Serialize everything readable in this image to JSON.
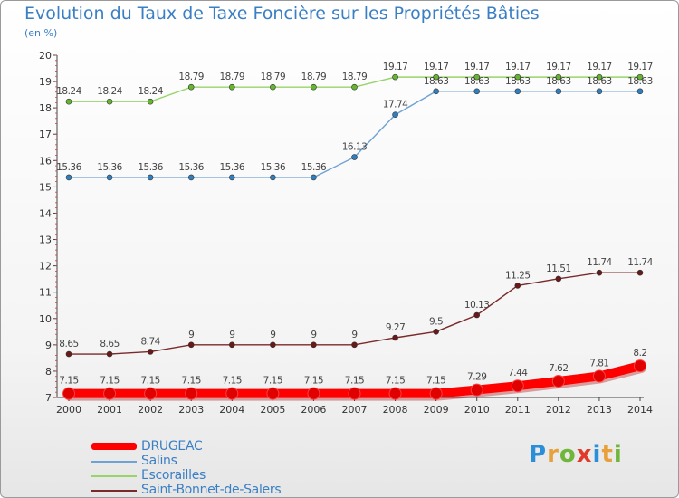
{
  "title": "Evolution du Taux de Taxe Foncière sur les Propriétés Bâties",
  "unit_label": "(en %)",
  "logo": {
    "letters": [
      "P",
      "r",
      "o",
      "x",
      "i",
      "t",
      "i"
    ],
    "colors": [
      "#2a8fd8",
      "#e8a13a",
      "#6fb63a",
      "#e23a2a",
      "#2a8fd8",
      "#e8a13a",
      "#6fb63a"
    ]
  },
  "chart_data": {
    "type": "line",
    "x": [
      2000,
      2001,
      2002,
      2003,
      2004,
      2005,
      2006,
      2007,
      2008,
      2009,
      2010,
      2011,
      2012,
      2013,
      2014
    ],
    "ylim": [
      7,
      20
    ],
    "yticks": [
      7,
      8,
      9,
      10,
      11,
      12,
      13,
      14,
      15,
      16,
      17,
      18,
      19,
      20
    ],
    "grid": false,
    "legend_position": "bottom-left",
    "series": [
      {
        "name": "DRUGEAC",
        "color": "#ff0000",
        "marker_color": "#e00000",
        "labels": [
          "7.15",
          "7.15",
          "7.15",
          "7.15",
          "7.15",
          "7.15",
          "7.15",
          "7.15",
          "7.15",
          "7.15",
          "7.29",
          "7.44",
          "7.62",
          "7.81",
          "8.2"
        ],
        "values": [
          7.15,
          7.15,
          7.15,
          7.15,
          7.15,
          7.15,
          7.15,
          7.15,
          7.15,
          7.15,
          7.29,
          7.44,
          7.62,
          7.81,
          8.2
        ]
      },
      {
        "name": "Salins",
        "color": "#6fa3d4",
        "marker_color": "#2f7fc0",
        "labels": [
          "15.36",
          "15.36",
          "15.36",
          "15.36",
          "15.36",
          "15.36",
          "15.36",
          "16.13",
          "17.74",
          "18.63",
          "18.63",
          "18.63",
          "18.63",
          "18.63",
          "18.63"
        ],
        "values": [
          15.36,
          15.36,
          15.36,
          15.36,
          15.36,
          15.36,
          15.36,
          16.13,
          17.74,
          18.63,
          18.63,
          18.63,
          18.63,
          18.63,
          18.63
        ]
      },
      {
        "name": "Escorailles",
        "color": "#99d46a",
        "marker_color": "#66b531",
        "labels": [
          "18.24",
          "18.24",
          "18.24",
          "18.79",
          "18.79",
          "18.79",
          "18.79",
          "18.79",
          "19.17",
          "19.17",
          "19.17",
          "19.17",
          "19.17",
          "19.17",
          "19.17"
        ],
        "values": [
          18.24,
          18.24,
          18.24,
          18.79,
          18.79,
          18.79,
          18.79,
          18.79,
          19.17,
          19.17,
          19.17,
          19.17,
          19.17,
          19.17,
          19.17
        ]
      },
      {
        "name": "Saint-Bonnet-de-Salers",
        "color": "#7a2a2a",
        "marker_color": "#6a1818",
        "labels": [
          "8.65",
          "8.65",
          "8.74",
          "9",
          "9",
          "9",
          "9",
          "9",
          "9.27",
          "9.5",
          "10.13",
          "11.25",
          "11.51",
          "11.74",
          "11.74"
        ],
        "values": [
          8.65,
          8.65,
          8.74,
          9,
          9,
          9,
          9,
          9,
          9.27,
          9.5,
          10.13,
          11.25,
          11.51,
          11.74,
          11.74
        ]
      }
    ]
  }
}
